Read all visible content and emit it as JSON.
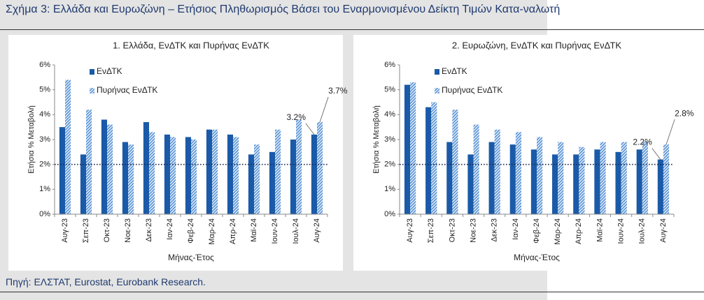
{
  "title": "Σχήμα 3: Ελλάδα και Ευρωζώνη – Ετήσιος Πληθωρισμός Βάσει του Εναρμονισμένου Δείκτη Τιμών Κατα-ναλωτή",
  "source": "Πηγή: ΕΛΣΤΑΤ, Eurostat, Eurobank Research.",
  "chart_data": [
    {
      "type": "bar",
      "title": "1. Ελλάδα, ΕνΔΤΚ και Πυρήνας ΕνΔΤΚ",
      "x_label": "Μήνας-Έτος",
      "y_label": "Ετήσια % Μεταβολή",
      "categories": [
        "Αυγ-23",
        "Σεπ-23",
        "Οκτ-23",
        "Νοε-23",
        "Δεκ-23",
        "Ιαν-24",
        "Φεβ-24",
        "Μαρ-24",
        "Απρ-24",
        "Μαϊ-24",
        "Ιουν-24",
        "Ιουλ-24",
        "Αυγ-24"
      ],
      "series": [
        {
          "name": "ΕνΔΤΚ",
          "color": "#1a5aa8",
          "pattern": "solid",
          "values": [
            3.5,
            2.4,
            3.8,
            2.9,
            3.7,
            3.2,
            3.1,
            3.4,
            3.2,
            2.4,
            2.5,
            3.0,
            3.2
          ],
          "value_labels": [
            null,
            null,
            null,
            null,
            null,
            null,
            null,
            null,
            null,
            null,
            null,
            null,
            "3.2%"
          ]
        },
        {
          "name": "Πυρήνας ΕνΔΤΚ",
          "color": "#5b95d6",
          "pattern": "hatch",
          "values": [
            5.4,
            4.2,
            3.6,
            2.8,
            3.3,
            3.1,
            3.0,
            3.4,
            3.1,
            2.8,
            3.4,
            3.8,
            3.7
          ],
          "value_labels": [
            null,
            null,
            null,
            null,
            null,
            null,
            null,
            null,
            null,
            null,
            null,
            null,
            "3.7%"
          ]
        }
      ],
      "ylim": [
        0,
        6
      ],
      "yticks": [
        {
          "value": 0,
          "label": "0%"
        },
        {
          "value": 1,
          "label": "1%"
        },
        {
          "value": 2,
          "label": "2%"
        },
        {
          "value": 3,
          "label": "3%"
        },
        {
          "value": 4,
          "label": "4%"
        },
        {
          "value": 5,
          "label": "5%"
        },
        {
          "value": 6,
          "label": "6%"
        }
      ],
      "reference_line": 2,
      "grid": false
    },
    {
      "type": "bar",
      "title": "2. Ευρωζώνη,  ΕνΔΤΚ και Πυρήνας ΕνΔΤΚ",
      "x_label": "Μήνας-Έτος",
      "y_label": "Ετήσια % Μεταβολή",
      "categories": [
        "Αυγ-23",
        "Σεπ-23",
        "Οκτ-23",
        "Νοε-23",
        "Δεκ-23",
        "Ιαν-24",
        "Φεβ-24",
        "Μαρ-24",
        "Απρ-24",
        "Μαϊ-24",
        "Ιουν-24",
        "Ιουλ-24",
        "Αυγ-24"
      ],
      "series": [
        {
          "name": "ΕνΔΤΚ",
          "color": "#1a5aa8",
          "pattern": "solid",
          "values": [
            5.2,
            4.3,
            2.9,
            2.4,
            2.9,
            2.8,
            2.6,
            2.4,
            2.4,
            2.6,
            2.5,
            2.6,
            2.2
          ],
          "value_labels": [
            null,
            null,
            null,
            null,
            null,
            null,
            null,
            null,
            null,
            null,
            null,
            null,
            "2.2%"
          ]
        },
        {
          "name": "Πυρήνας ΕνΔΤΚ",
          "color": "#5b95d6",
          "pattern": "hatch",
          "values": [
            5.3,
            4.5,
            4.2,
            3.6,
            3.4,
            3.3,
            3.1,
            2.9,
            2.7,
            2.9,
            2.9,
            2.9,
            2.8
          ],
          "value_labels": [
            null,
            null,
            null,
            null,
            null,
            null,
            null,
            null,
            null,
            null,
            null,
            null,
            "2.8%"
          ]
        }
      ],
      "ylim": [
        0,
        6
      ],
      "yticks": [
        {
          "value": 0,
          "label": "0%"
        },
        {
          "value": 1,
          "label": "1%"
        },
        {
          "value": 2,
          "label": "2%"
        },
        {
          "value": 3,
          "label": "3%"
        },
        {
          "value": 4,
          "label": "4%"
        },
        {
          "value": 5,
          "label": "5%"
        },
        {
          "value": 6,
          "label": "6%"
        }
      ],
      "reference_line": 2,
      "grid": false
    }
  ]
}
